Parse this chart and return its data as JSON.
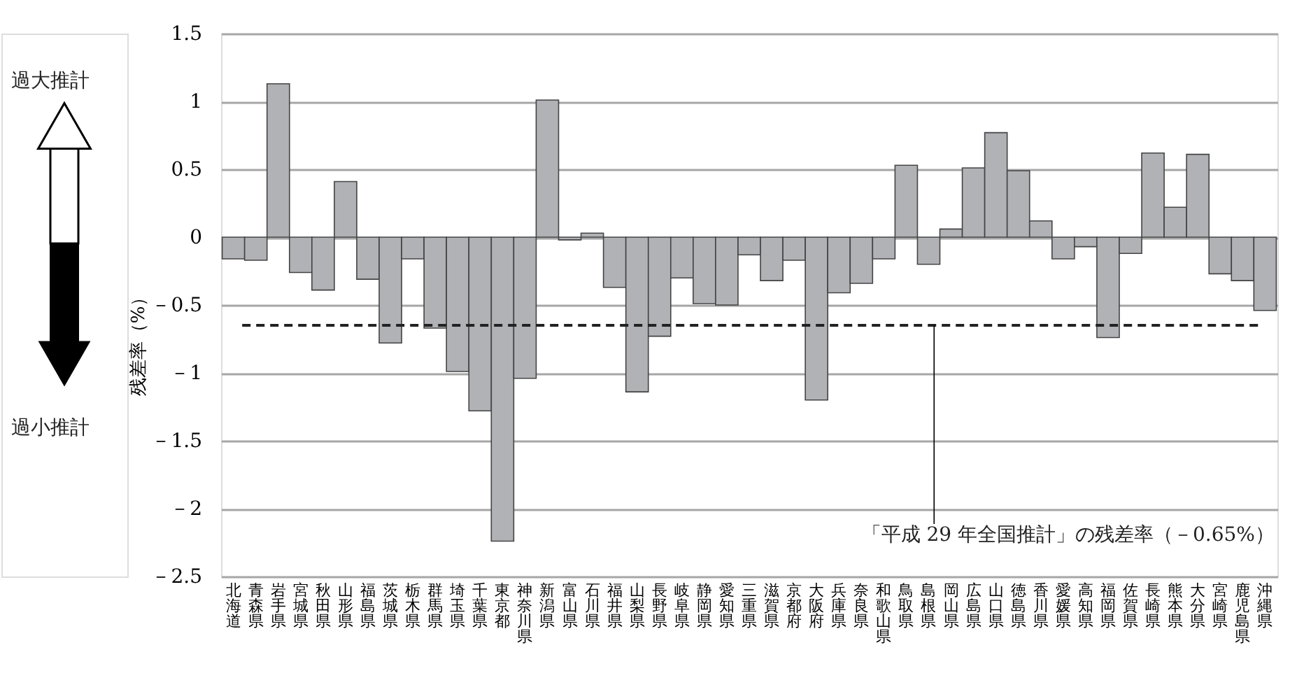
{
  "chart_data": {
    "type": "bar",
    "ylabel": "残差率（%）",
    "categories": [
      "北海道",
      "青森県",
      "岩手県",
      "宮城県",
      "秋田県",
      "山形県",
      "福島県",
      "茨城県",
      "栃木県",
      "群馬県",
      "埼玉県",
      "千葉県",
      "東京都",
      "神奈川県",
      "新潟県",
      "富山県",
      "石川県",
      "福井県",
      "山梨県",
      "長野県",
      "岐阜県",
      "静岡県",
      "愛知県",
      "三重県",
      "滋賀県",
      "京都府",
      "大阪府",
      "兵庫県",
      "奈良県",
      "和歌山県",
      "鳥取県",
      "島根県",
      "岡山県",
      "広島県",
      "山口県",
      "徳島県",
      "香川県",
      "愛媛県",
      "高知県",
      "福岡県",
      "佐賀県",
      "長崎県",
      "熊本県",
      "大分県",
      "宮崎県",
      "鹿児島県",
      "沖縄県"
    ],
    "values": [
      -0.16,
      -0.17,
      1.13,
      -0.26,
      -0.39,
      0.41,
      -0.31,
      -0.78,
      -0.16,
      -0.67,
      -0.99,
      -1.28,
      -2.24,
      -1.04,
      1.01,
      -0.02,
      0.03,
      -0.37,
      -1.14,
      -0.73,
      -0.3,
      -0.49,
      -0.5,
      -0.13,
      -0.32,
      -0.17,
      -1.2,
      -0.41,
      -0.34,
      -0.16,
      0.53,
      -0.2,
      0.06,
      0.51,
      0.77,
      0.49,
      0.12,
      -0.16,
      -0.07,
      -0.74,
      -0.12,
      0.62,
      0.22,
      0.61,
      -0.27,
      -0.32,
      -0.54
    ],
    "color": "#b1b2b6",
    "ylim": [
      -2.5,
      1.5
    ],
    "yticks": [
      1.5,
      1,
      0.5,
      0,
      {
        "value": -0.5,
        "label": "－0.5"
      },
      {
        "value": -1,
        "label": "－1"
      },
      {
        "value": -1.5,
        "label": "－1.5"
      },
      {
        "value": -2,
        "label": "－2"
      },
      {
        "value": -2.5,
        "label": "－2.5"
      }
    ],
    "grid": "y",
    "legend": false,
    "ref_lines": [
      {
        "axis": "y",
        "value": -0.65,
        "label": "「平成 29 年全国推計」の残差率（－0.65%）",
        "line_style": "dashed",
        "color": "#222222"
      }
    ],
    "annotations": [
      "過大推計",
      "過小推計"
    ]
  }
}
